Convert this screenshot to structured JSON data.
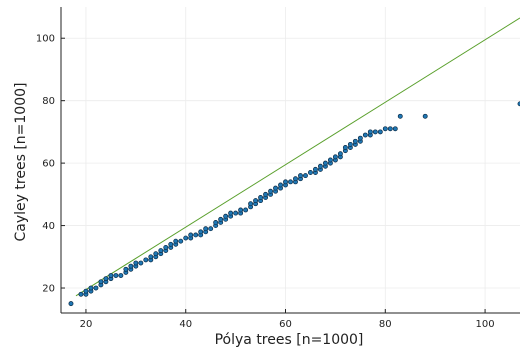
{
  "chart_data": {
    "type": "scatter",
    "xlabel": "Pólya trees [n=1000]",
    "ylabel": "Cayley trees [n=1000]",
    "xlim": [
      15,
      107
    ],
    "ylim": [
      12,
      110
    ],
    "xticks": [
      20,
      40,
      60,
      80,
      100
    ],
    "yticks": [
      20,
      40,
      60,
      80,
      100
    ],
    "grid": true,
    "legend": "none",
    "colors": {
      "points": "#1f77b4",
      "point_edge": "#0b2a44",
      "reference_line": "#5aa02c",
      "axis": "#222222",
      "grid": "#ececec"
    },
    "reference_line": {
      "from": [
        18,
        17.5
      ],
      "to": [
        107,
        106.5
      ]
    },
    "series": [
      {
        "values": [
          [
            17,
            15
          ],
          [
            19,
            18
          ],
          [
            20,
            18
          ],
          [
            20,
            19
          ],
          [
            21,
            19
          ],
          [
            21,
            20
          ],
          [
            22,
            20
          ],
          [
            23,
            21
          ],
          [
            23,
            22
          ],
          [
            24,
            22
          ],
          [
            24,
            23
          ],
          [
            25,
            23
          ],
          [
            25,
            24
          ],
          [
            26,
            24
          ],
          [
            27,
            24
          ],
          [
            28,
            25
          ],
          [
            28,
            26
          ],
          [
            29,
            26
          ],
          [
            29,
            27
          ],
          [
            30,
            27
          ],
          [
            30,
            28
          ],
          [
            31,
            28
          ],
          [
            32,
            29
          ],
          [
            33,
            29
          ],
          [
            33,
            30
          ],
          [
            34,
            30
          ],
          [
            34,
            31
          ],
          [
            35,
            31
          ],
          [
            35,
            32
          ],
          [
            36,
            32
          ],
          [
            36,
            33
          ],
          [
            37,
            33
          ],
          [
            37,
            34
          ],
          [
            38,
            34
          ],
          [
            38,
            35
          ],
          [
            39,
            35
          ],
          [
            40,
            36
          ],
          [
            41,
            36
          ],
          [
            41,
            37
          ],
          [
            42,
            37
          ],
          [
            43,
            37
          ],
          [
            43,
            38
          ],
          [
            44,
            38
          ],
          [
            44,
            39
          ],
          [
            45,
            39
          ],
          [
            46,
            40
          ],
          [
            46,
            41
          ],
          [
            47,
            41
          ],
          [
            47,
            42
          ],
          [
            48,
            42
          ],
          [
            48,
            43
          ],
          [
            49,
            43
          ],
          [
            49,
            44
          ],
          [
            50,
            44
          ],
          [
            51,
            44
          ],
          [
            51,
            45
          ],
          [
            52,
            45
          ],
          [
            53,
            46
          ],
          [
            53,
            47
          ],
          [
            54,
            47
          ],
          [
            54,
            48
          ],
          [
            55,
            48
          ],
          [
            55,
            49
          ],
          [
            56,
            49
          ],
          [
            56,
            50
          ],
          [
            57,
            50
          ],
          [
            57,
            51
          ],
          [
            58,
            51
          ],
          [
            58,
            52
          ],
          [
            59,
            52
          ],
          [
            59,
            53
          ],
          [
            60,
            53
          ],
          [
            60,
            54
          ],
          [
            61,
            54
          ],
          [
            62,
            54
          ],
          [
            62,
            55
          ],
          [
            63,
            55
          ],
          [
            63,
            56
          ],
          [
            64,
            56
          ],
          [
            65,
            57
          ],
          [
            66,
            57
          ],
          [
            66,
            58
          ],
          [
            67,
            58
          ],
          [
            67,
            59
          ],
          [
            68,
            59
          ],
          [
            68,
            60
          ],
          [
            69,
            60
          ],
          [
            69,
            61
          ],
          [
            70,
            61
          ],
          [
            70,
            62
          ],
          [
            71,
            62
          ],
          [
            71,
            63
          ],
          [
            72,
            64
          ],
          [
            72,
            65
          ],
          [
            73,
            65
          ],
          [
            73,
            66
          ],
          [
            74,
            66
          ],
          [
            74,
            67
          ],
          [
            75,
            67
          ],
          [
            75,
            68
          ],
          [
            76,
            69
          ],
          [
            77,
            69
          ],
          [
            77,
            70
          ],
          [
            78,
            70
          ],
          [
            79,
            70
          ],
          [
            80,
            71
          ],
          [
            81,
            71
          ],
          [
            82,
            71
          ],
          [
            83,
            75
          ],
          [
            88,
            75
          ],
          [
            107,
            79
          ]
        ]
      }
    ]
  }
}
